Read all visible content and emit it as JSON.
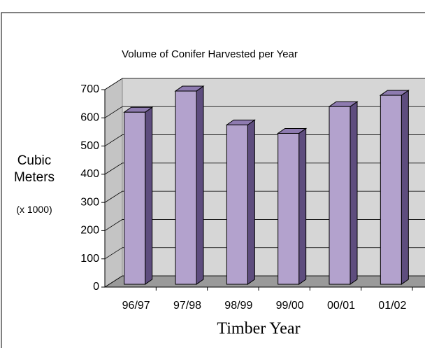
{
  "chart_data": {
    "type": "bar",
    "title": "Volume of Conifer Harvested per Year",
    "ylabel": "Cubic Meters",
    "yunit": "(x 1000)",
    "xlabel": "Timber Year",
    "categories": [
      "96/97",
      "97/98",
      "98/99",
      "99/00",
      "00/01",
      "01/02"
    ],
    "values": [
      610,
      685,
      565,
      535,
      630,
      670
    ],
    "color": "#b3a2cd",
    "ylim": [
      0,
      700
    ],
    "yticks": [
      0,
      100,
      200,
      300,
      400,
      500,
      600,
      700
    ],
    "grid": true
  }
}
